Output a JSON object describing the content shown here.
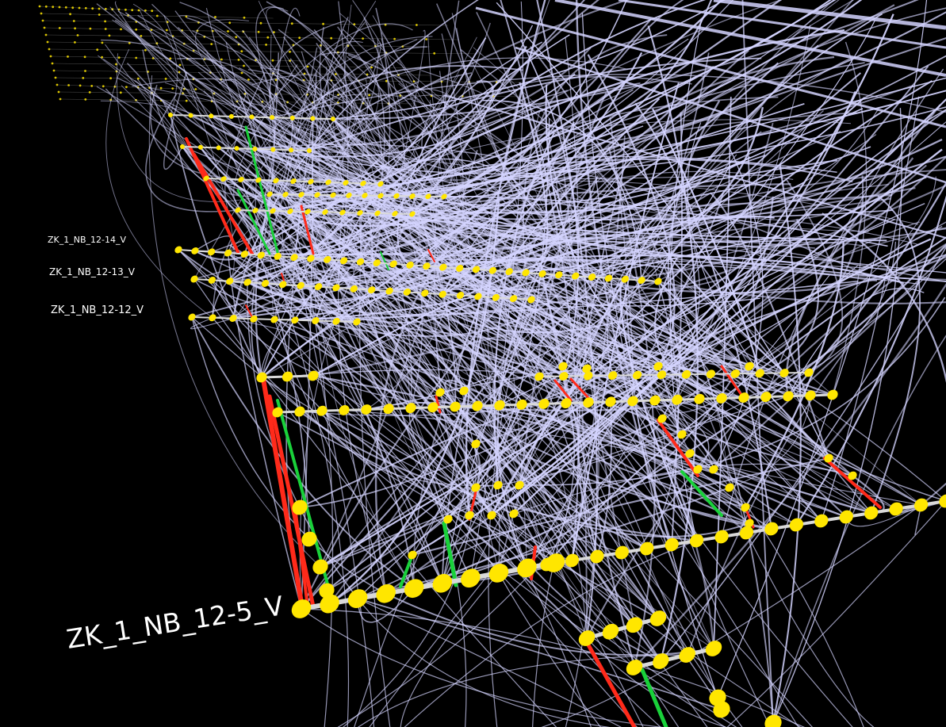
{
  "colors": {
    "background": "#000000",
    "backbone": "#d9d9d9",
    "node": "#ffe600",
    "edge_white": "#d4d4ff",
    "edge_red": "#ff2a1a",
    "edge_green": "#19d13a"
  },
  "labels": {
    "track_12_14": "ZK_1_NB_12-14_V",
    "track_12_13": "ZK_1_NB_12-13_V",
    "track_12_12": "ZK_1_NB_12-12_V",
    "track_12_5": "ZK_1_NB_12-5_V"
  }
}
